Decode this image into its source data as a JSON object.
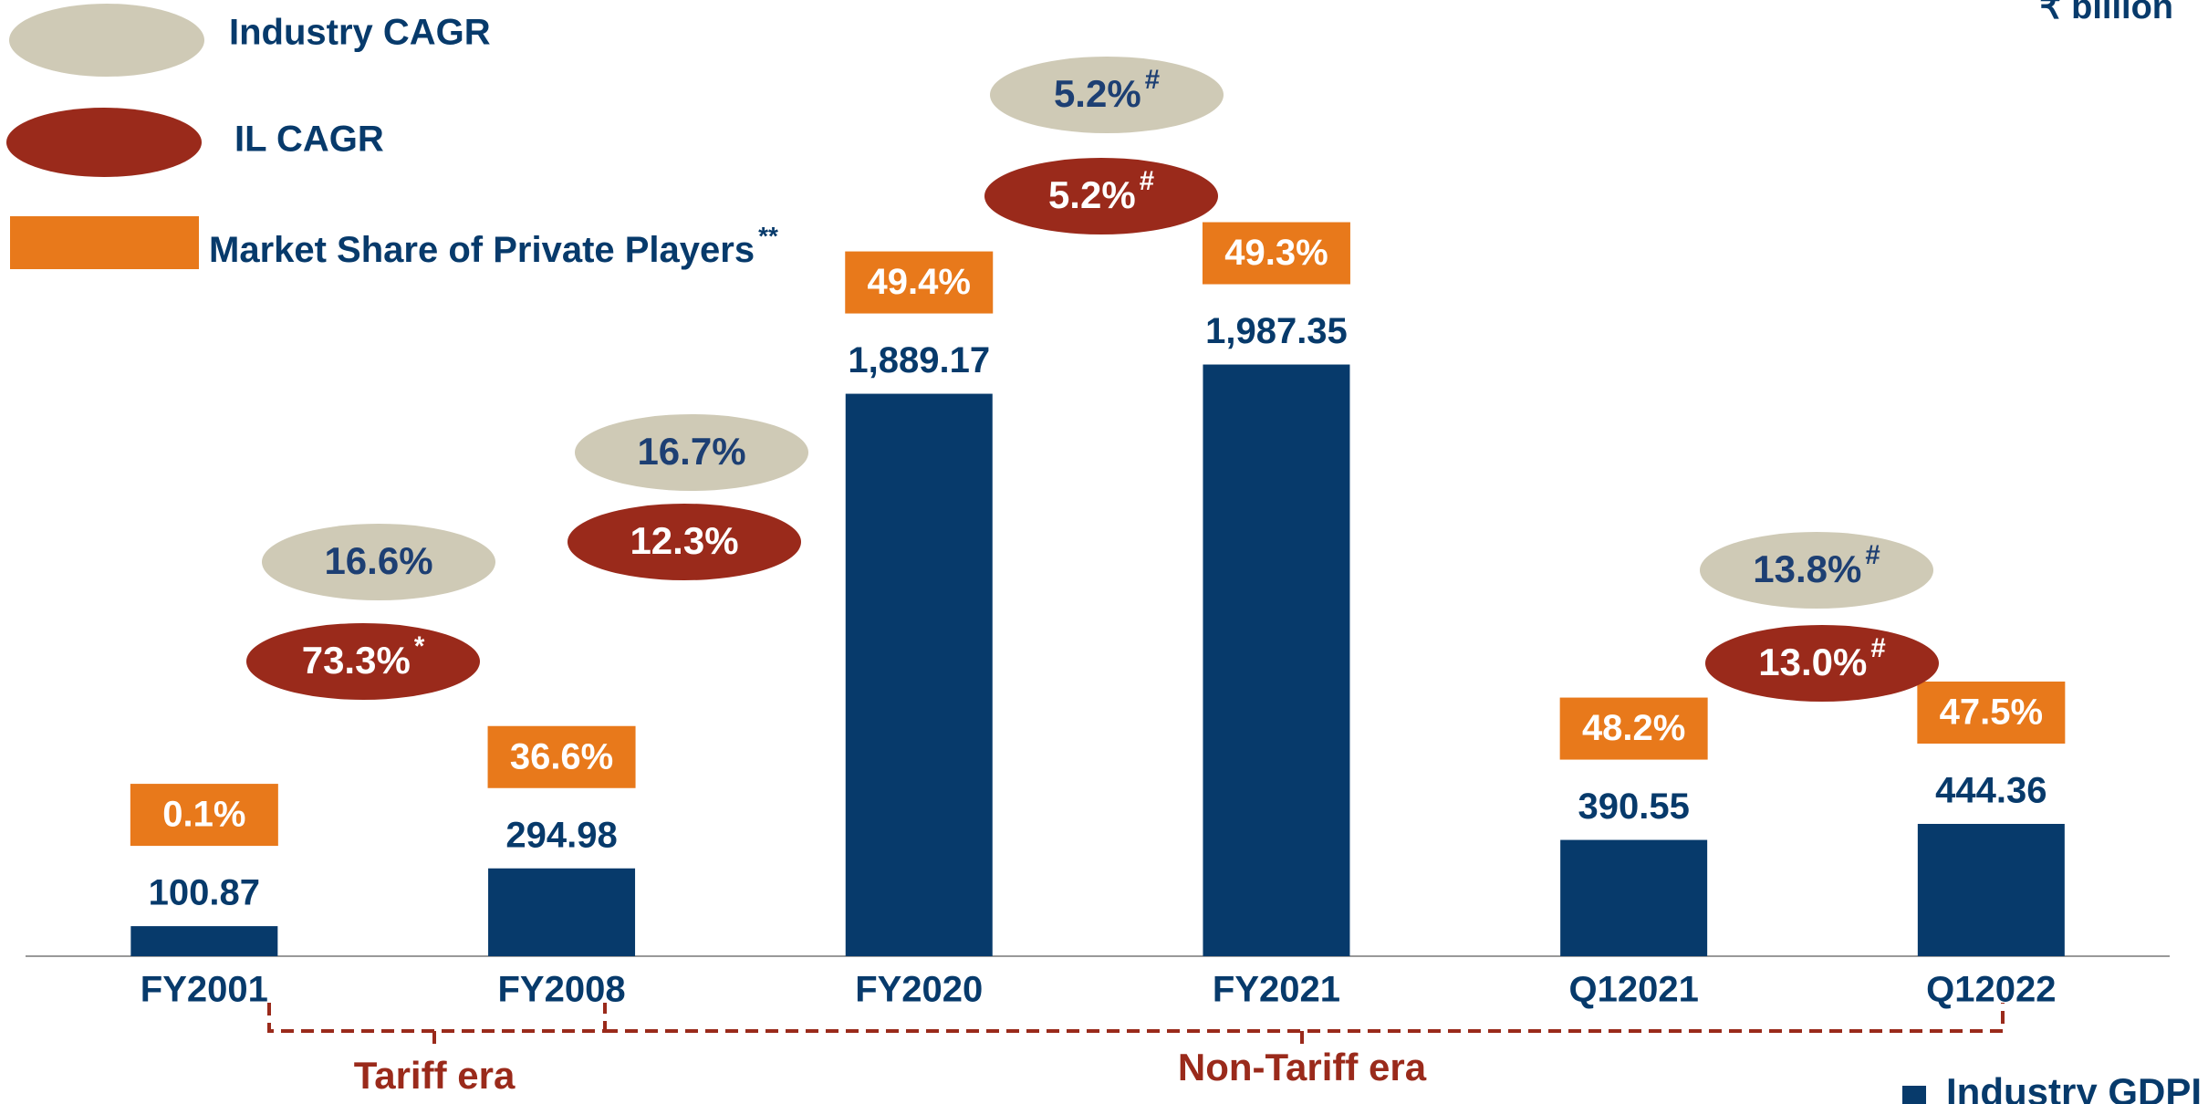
{
  "chart_data": {
    "type": "bar",
    "unit": "₹ billion",
    "categories": [
      "FY2001",
      "FY2008",
      "FY2020",
      "FY2021",
      "Q12021",
      "Q12022"
    ],
    "series": [
      {
        "name": "Industry GDPI",
        "color": "#073a6b",
        "values": [
          100.87,
          294.98,
          1889.17,
          1987.35,
          390.55,
          444.36
        ],
        "value_labels": [
          "100.87",
          "294.98",
          "1,889.17",
          "1,987.35",
          "390.55",
          "444.36"
        ]
      }
    ],
    "market_share": {
      "name": "Market Share of Private Players",
      "marker": "**",
      "color": "#e8791b",
      "values": [
        0.1,
        36.6,
        49.4,
        49.3,
        48.2,
        47.5
      ],
      "value_labels": [
        "0.1%",
        "36.6%",
        "49.4%",
        "49.3%",
        "48.2%",
        "47.5%"
      ]
    },
    "cagr_legend": {
      "industry": {
        "name": "Industry CAGR",
        "color": "#cfcab6"
      },
      "il": {
        "name": "IL CAGR",
        "color": "#9a2a1b"
      }
    },
    "cagr": [
      {
        "industry": {
          "value": 16.6,
          "label": "16.6%"
        },
        "il": {
          "value": 73.3,
          "label": "73.3%",
          "marker": "*"
        }
      },
      {
        "industry": {
          "value": 16.7,
          "label": "16.7%"
        },
        "il": {
          "value": 12.3,
          "label": "12.3%"
        }
      },
      {
        "industry": {
          "value": 5.2,
          "label": "5.2%",
          "marker": "#"
        },
        "il": {
          "value": 5.2,
          "label": "5.2%",
          "marker": "#"
        }
      },
      {
        "industry": {
          "value": 13.8,
          "label": "13.8%",
          "marker": "#"
        },
        "il": {
          "value": 13.0,
          "label": "13.0%",
          "marker": "#"
        }
      }
    ],
    "eras": [
      "Tariff era",
      "Non-Tariff era"
    ]
  }
}
